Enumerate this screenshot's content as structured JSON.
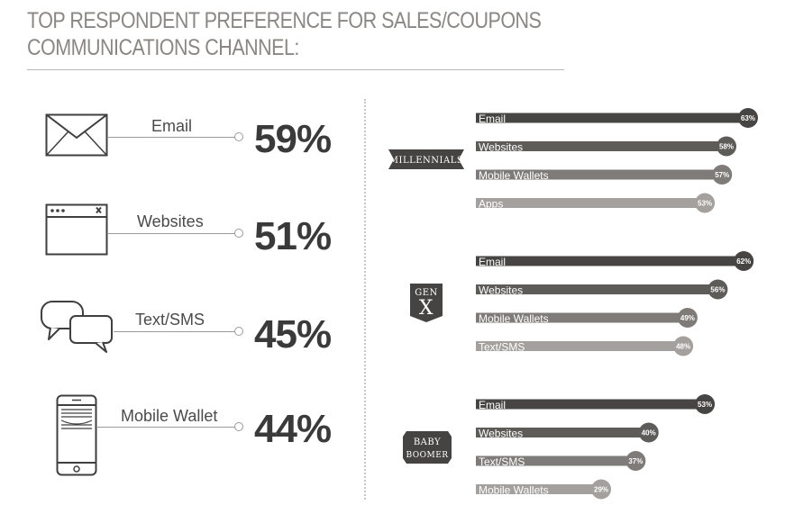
{
  "title": {
    "line1": "TOP RESPONDENT PREFERENCE FOR SALES/COUPONS",
    "line2": "COMMUNICATIONS CHANNEL:"
  },
  "overall": [
    {
      "label": "Email",
      "value": "59%",
      "icon": "envelope-icon"
    },
    {
      "label": "Websites",
      "value": "51%",
      "icon": "browser-window-icon"
    },
    {
      "label": "Text/SMS",
      "value": "45%",
      "icon": "chat-bubbles-icon"
    },
    {
      "label": "Mobile Wallet",
      "value": "44%",
      "icon": "mobile-phone-icon"
    }
  ],
  "chart_data": {
    "type": "bar",
    "orientation": "horizontal",
    "groups": [
      {
        "name": "MILLENNIALS",
        "categories": [
          "Email",
          "Websites",
          "Mobile Wallets",
          "Apps"
        ],
        "values": [
          63,
          58,
          57,
          53
        ],
        "labels": [
          "63%",
          "58%",
          "57%",
          "53%"
        ]
      },
      {
        "name": "GEN X",
        "name_lines": [
          "GEN",
          "X"
        ],
        "categories": [
          "Email",
          "Websites",
          "Mobile Wallets",
          "Text/SMS"
        ],
        "values": [
          62,
          56,
          49,
          48
        ],
        "labels": [
          "62%",
          "56%",
          "49%",
          "48%"
        ]
      },
      {
        "name": "BABY BOOMER",
        "name_lines": [
          "BABY",
          "BOOMER"
        ],
        "categories": [
          "Email",
          "Websites",
          "Text/SMS",
          "Mobile Wallets"
        ],
        "values": [
          53,
          40,
          37,
          29
        ],
        "labels": [
          "53%",
          "40%",
          "37%",
          "29%"
        ]
      }
    ],
    "bar_colors": [
      "#464543",
      "#5e5c59",
      "#7e7b78",
      "#a3a09d"
    ]
  }
}
